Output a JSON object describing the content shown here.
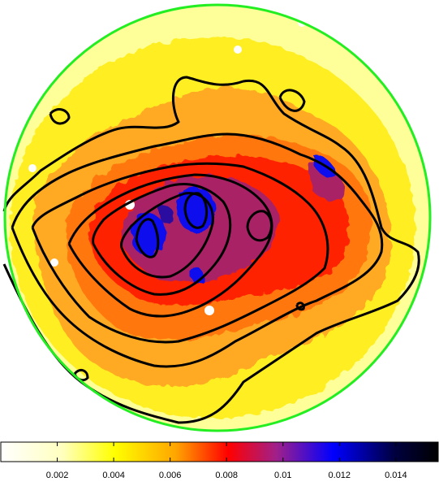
{
  "figure": {
    "description_free": true,
    "circle_border_color": "#22ee22",
    "contour_color": "#000000",
    "background_color": "#ffff66"
  },
  "colorbar": {
    "min": 0.0,
    "max": 0.0155,
    "ticks": [
      "0.002",
      "0.004",
      "0.006",
      "0.008",
      "0.01",
      "0.012",
      "0.014"
    ],
    "tick_values": [
      0.002,
      0.004,
      0.006,
      0.008,
      0.01,
      0.012,
      0.014
    ],
    "colormap": [
      "#ffffff",
      "#ffff00",
      "#ffa500",
      "#ff0000",
      "#800080",
      "#0000ff",
      "#000000"
    ]
  }
}
